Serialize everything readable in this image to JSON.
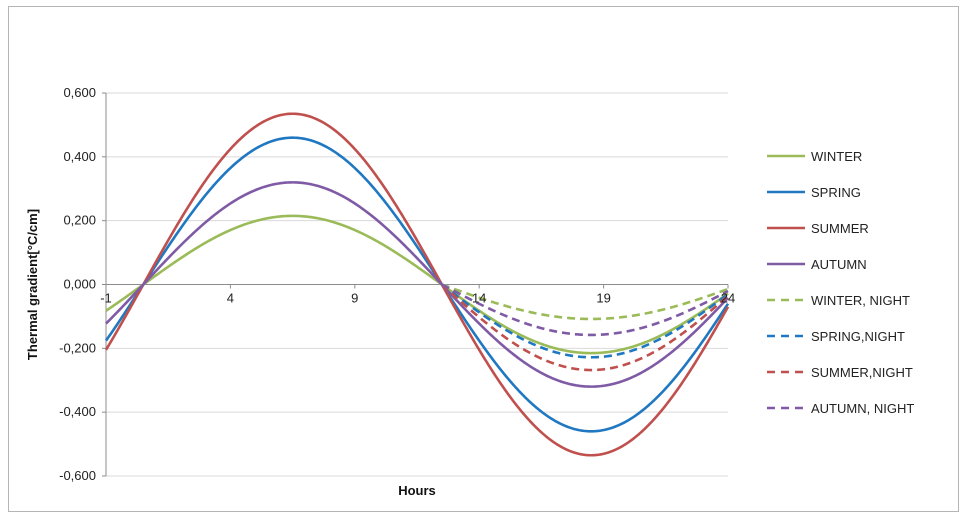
{
  "chart_data": {
    "type": "line",
    "title": "",
    "xlabel": "Hours",
    "ylabel": "Thermal gradient[°C/cm]",
    "xlim": [
      -1,
      24
    ],
    "ylim": [
      -0.6,
      0.6
    ],
    "x_ticks": [
      -1,
      4,
      9,
      14,
      19,
      24
    ],
    "x_tick_labels": [
      "-1",
      "4",
      "9",
      "14",
      "19",
      "24"
    ],
    "y_ticks": [
      0.6,
      0.4,
      0.2,
      0.0,
      -0.2,
      -0.4,
      -0.6
    ],
    "y_tick_labels": [
      "0,600",
      "0,400",
      "0,200",
      "0,000",
      "-0,200",
      "-0,400",
      "-0,600"
    ],
    "grid": true,
    "legend_position": "right",
    "series": [
      {
        "name": "WINTER",
        "color": "#9bbb59",
        "dash": false,
        "amplitude": 0.215,
        "x_start": -1,
        "x_end": 12.5
      },
      {
        "name": "SPRING",
        "color": "#1f78c1",
        "dash": false,
        "amplitude": 0.46,
        "x_start": -1,
        "x_end": 12.5
      },
      {
        "name": "SUMMER",
        "color": "#c0504d",
        "dash": false,
        "amplitude": 0.535,
        "x_start": -1,
        "x_end": 12.5
      },
      {
        "name": "AUTUMN",
        "color": "#7f5ba6",
        "dash": false,
        "amplitude": 0.32,
        "x_start": -1,
        "x_end": 12.5
      },
      {
        "name": "WINTER, NIGHT",
        "color": "#9bbb59",
        "dash": true,
        "amplitude": 0.108,
        "x_start": 12.5,
        "x_end": 24
      },
      {
        "name": "SPRING,NIGHT",
        "color": "#1f78c1",
        "dash": true,
        "amplitude": 0.228,
        "x_start": 12.5,
        "x_end": 24
      },
      {
        "name": "SUMMER,NIGHT",
        "color": "#c0504d",
        "dash": true,
        "amplitude": 0.268,
        "x_start": 12.5,
        "x_end": 24
      },
      {
        "name": "AUTUMN, NIGHT",
        "color": "#7f5ba6",
        "dash": true,
        "amplitude": 0.158,
        "x_start": 12.5,
        "x_end": 24
      }
    ],
    "daytime_continuation": [
      {
        "name": "WINTER",
        "color": "#9bbb59",
        "amplitude": 0.215
      },
      {
        "name": "SPRING",
        "color": "#1f78c1",
        "amplitude": 0.46
      },
      {
        "name": "SUMMER",
        "color": "#c0504d",
        "amplitude": 0.535
      },
      {
        "name": "AUTUMN",
        "color": "#7f5ba6",
        "amplitude": 0.32
      }
    ],
    "zero_crossings": [
      0.5,
      12.5,
      24
    ]
  }
}
